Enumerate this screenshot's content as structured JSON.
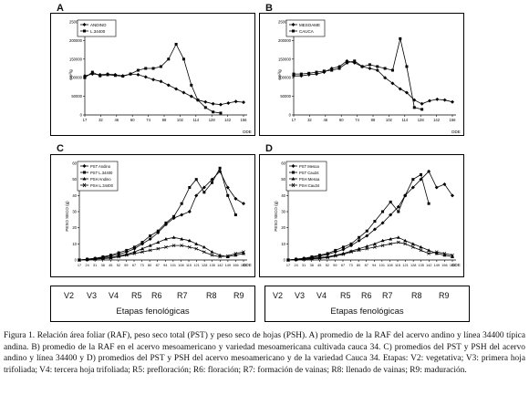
{
  "panels": {
    "A": {
      "letter": "A",
      "legend": [
        "ANDINO",
        "L.34400"
      ],
      "ylabel": "cm²/g",
      "xlabel": "DDE"
    },
    "B": {
      "letter": "B",
      "legend": [
        "MESOAME",
        "CAUCA"
      ],
      "ylabel": "cm²/g",
      "xlabel": "DDE"
    },
    "C": {
      "letter": "C",
      "legend": [
        "PST Andino",
        "PST L.34400",
        "PSH Andino",
        "PSH L.34400"
      ],
      "ylabel": "PESO SECO (g)",
      "xlabel": "DDE"
    },
    "D": {
      "letter": "D",
      "legend": [
        "PST Mesoa",
        "PST Cau34",
        "PSH Mesoa",
        "PSH Cau34"
      ],
      "ylabel": "PESO SECO (g)",
      "xlabel": "DDE"
    }
  },
  "chart_data": [
    {
      "type": "line",
      "panel": "A",
      "x": [
        17,
        24,
        31,
        38,
        45,
        52,
        59,
        66,
        73,
        80,
        87,
        94,
        101,
        108,
        115,
        121,
        128,
        135,
        142,
        149,
        156,
        163
      ],
      "xticks": [
        "17",
        "32",
        "46",
        "60",
        "74",
        "88",
        "102",
        "114",
        "128",
        "142",
        "156"
      ],
      "yticks": [
        "0",
        "50000",
        "100000",
        "150000",
        "200000",
        "250000"
      ],
      "ylim": [
        0,
        250000
      ],
      "series": [
        {
          "name": "ANDINO",
          "values": [
            105000,
            110000,
            108000,
            110000,
            108000,
            105000,
            110000,
            108000,
            102000,
            95000,
            90000,
            80000,
            70000,
            60000,
            50000,
            40000,
            35000,
            30000,
            28000,
            32000,
            36000,
            34000
          ]
        },
        {
          "name": "L.34400",
          "values": [
            100000,
            115000,
            105000,
            108000,
            106000,
            104000,
            110000,
            120000,
            125000,
            125000,
            130000,
            150000,
            190000,
            150000,
            80000,
            40000,
            20000,
            8000,
            5000,
            null,
            null,
            null
          ]
        }
      ]
    },
    {
      "type": "line",
      "panel": "B",
      "x": [
        17,
        24,
        31,
        38,
        45,
        52,
        59,
        66,
        73,
        80,
        87,
        94,
        101,
        108,
        115,
        121,
        128,
        135,
        142,
        149,
        156,
        163
      ],
      "xticks": [
        "17",
        "32",
        "46",
        "60",
        "74",
        "88",
        "102",
        "114",
        "128",
        "142",
        "156"
      ],
      "yticks": [
        "0",
        "50000",
        "100000",
        "150000",
        "200000",
        "250000"
      ],
      "ylim": [
        0,
        250000
      ],
      "series": [
        {
          "name": "MESOAME",
          "values": [
            105000,
            105000,
            108000,
            110000,
            115000,
            125000,
            130000,
            145000,
            140000,
            130000,
            125000,
            120000,
            100000,
            85000,
            70000,
            60000,
            40000,
            30000,
            38000,
            42000,
            40000,
            35000
          ]
        },
        {
          "name": "CAUCA",
          "values": [
            110000,
            110000,
            112000,
            115000,
            118000,
            120000,
            125000,
            140000,
            145000,
            130000,
            135000,
            130000,
            125000,
            120000,
            205000,
            130000,
            20000,
            15000,
            null,
            null,
            null,
            null
          ]
        }
      ]
    },
    {
      "type": "line",
      "panel": "C",
      "x": [
        17,
        24,
        31,
        38,
        45,
        52,
        59,
        66,
        73,
        80,
        87,
        94,
        101,
        108,
        115,
        121,
        128,
        135,
        142,
        149,
        156,
        163
      ],
      "xticks": [
        "17",
        "24",
        "31",
        "38",
        "45",
        "52",
        "59",
        "67",
        "73",
        "80",
        "87",
        "94",
        "101",
        "108",
        "115",
        "121",
        "128",
        "135",
        "142",
        "149",
        "156",
        "163"
      ],
      "yticks": [
        "0",
        "10",
        "20",
        "30",
        "40",
        "50",
        "60"
      ],
      "ylim": [
        0,
        60
      ],
      "series": [
        {
          "name": "PST Andino",
          "values": [
            0,
            0.5,
            1,
            1.5,
            2.5,
            3.5,
            5,
            7,
            10,
            13,
            17,
            22,
            26,
            28,
            30,
            40,
            45,
            50,
            55,
            45,
            38,
            35
          ]
        },
        {
          "name": "PST L.34400",
          "values": [
            0,
            0.5,
            1,
            2,
            3,
            4.5,
            6,
            8,
            11,
            15,
            18,
            23,
            27,
            35,
            45,
            50,
            42,
            48,
            57,
            40,
            28,
            null
          ]
        },
        {
          "name": "PSH Andino",
          "values": [
            0,
            0.3,
            0.6,
            1,
            1.5,
            2.5,
            3.5,
            5,
            7,
            9,
            11,
            13,
            14,
            13,
            12,
            10,
            8,
            5,
            3,
            2,
            3,
            4
          ]
        },
        {
          "name": "PSH L.34400",
          "values": [
            0,
            0.2,
            0.5,
            0.8,
            1.2,
            2,
            3,
            4,
            5,
            6,
            7,
            8,
            9,
            9,
            8,
            7,
            5,
            3,
            2,
            2.5,
            4,
            5
          ]
        }
      ]
    },
    {
      "type": "line",
      "panel": "D",
      "x": [
        17,
        24,
        31,
        38,
        45,
        52,
        59,
        66,
        73,
        80,
        87,
        94,
        101,
        108,
        115,
        121,
        128,
        135,
        142,
        149,
        156,
        163
      ],
      "xticks": [
        "17",
        "24",
        "31",
        "38",
        "45",
        "52",
        "59",
        "67",
        "73",
        "80",
        "87",
        "94",
        "101",
        "108",
        "115",
        "121",
        "128",
        "135",
        "142",
        "149",
        "156",
        "163"
      ],
      "yticks": [
        "0",
        "10",
        "20",
        "30",
        "40",
        "50",
        "60"
      ],
      "ylim": [
        0,
        60
      ],
      "series": [
        {
          "name": "PST Mesoa",
          "values": [
            0,
            0.5,
            1,
            1.5,
            2.5,
            3.5,
            5,
            6.5,
            9,
            12,
            15,
            19,
            23,
            28,
            33,
            40,
            45,
            50,
            55,
            45,
            47,
            40
          ]
        },
        {
          "name": "PST Cau34",
          "values": [
            0,
            0.5,
            1,
            2,
            3,
            4,
            6,
            8,
            10,
            14,
            18,
            24,
            30,
            36,
            30,
            40,
            50,
            53,
            35,
            null,
            null,
            null
          ]
        },
        {
          "name": "PSH Mesoa",
          "values": [
            0,
            0.3,
            0.6,
            1,
            1.5,
            2,
            3,
            4,
            5.5,
            7,
            8.5,
            10,
            12,
            13,
            14,
            12,
            10,
            8,
            6,
            4,
            3,
            2
          ]
        },
        {
          "name": "PSH Cau34",
          "values": [
            0,
            0.2,
            0.4,
            0.7,
            1,
            1.5,
            2.5,
            3.5,
            5,
            6,
            7,
            8,
            9,
            10,
            11,
            10,
            8,
            6,
            4,
            5,
            4,
            3
          ]
        }
      ]
    }
  ],
  "stages": {
    "labels": [
      "V2",
      "V3",
      "V4",
      "R5",
      "R6",
      "R7",
      "R8",
      "R9"
    ],
    "title": "Etapas fenológicas"
  },
  "caption": "Figura 1. Relación área foliar (RAF), peso seco total (PST) y peso seco de hojas (PSH). A) promedio de la RAF del acervo andino y línea 34400 típica andina. B) promedio de la RAF en el acervo mesoamericano y variedad mesoamericana cultivada cauca 34. C) promedios del PST y PSH del acervo andino y línea 34400 y D) promedios del PST y PSH del acervo mesoamericano y de la variedad Cauca 34. Etapas: V2: vegetativa; V3: primera hoja trifoliada; V4: tercera hoja trifoliada; R5: prefloración; R6: floración; R7: formación de vainas; R8: llenado de vainas; R9: maduración."
}
